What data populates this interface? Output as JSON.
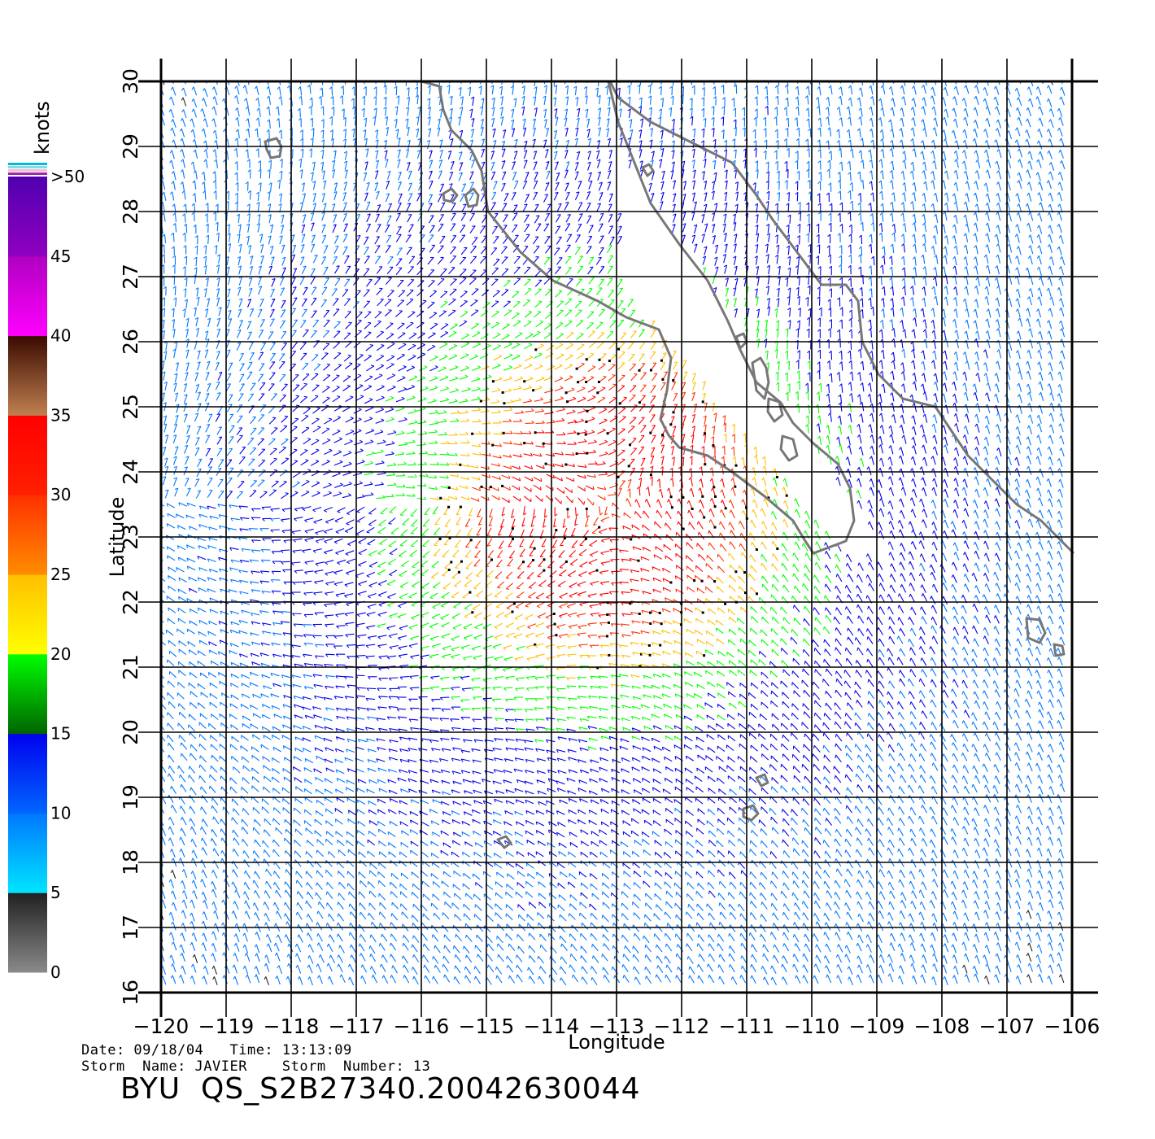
{
  "map": {
    "xlabel": "Longitude",
    "ylabel": "Latitude",
    "lon_ticks": [
      "−120",
      "−119",
      "−118",
      "−117",
      "−116",
      "−115",
      "−114",
      "−113",
      "−112",
      "−111",
      "−110",
      "−109",
      "−108",
      "−107",
      "−106"
    ],
    "lat_ticks": [
      "16",
      "17",
      "18",
      "19",
      "20",
      "21",
      "22",
      "23",
      "24",
      "25",
      "26",
      "27",
      "28",
      "29",
      "30"
    ],
    "lon_range": [
      -120,
      -106
    ],
    "lat_range": [
      16,
      30
    ],
    "storm_center": {
      "lon": -113.1,
      "lat": 23.5
    },
    "wind_barbs": "quiver field of wind vectors colored by speed"
  },
  "colorbar": {
    "unit": "knots",
    "labels": [
      ">50",
      "45",
      "40",
      "35",
      "30",
      "25",
      "20",
      "15",
      "10",
      "5",
      "0"
    ],
    "bands": [
      {
        "from": 0,
        "to": 5,
        "colors": [
          "#8a8a8a",
          "#202020"
        ]
      },
      {
        "from": 5,
        "to": 10,
        "colors": [
          "#00e5ff",
          "#0077ff"
        ]
      },
      {
        "from": 10,
        "to": 15,
        "colors": [
          "#0066ff",
          "#0000ee"
        ]
      },
      {
        "from": 15,
        "to": 20,
        "colors": [
          "#006400",
          "#00ff00"
        ]
      },
      {
        "from": 20,
        "to": 25,
        "colors": [
          "#ffff00",
          "#ffbf00"
        ]
      },
      {
        "from": 25,
        "to": 30,
        "colors": [
          "#ff8c00",
          "#ff3000"
        ]
      },
      {
        "from": 30,
        "to": 35,
        "colors": [
          "#ff2000",
          "#ff0000"
        ]
      },
      {
        "from": 35,
        "to": 40,
        "colors": [
          "#c08050",
          "#3a0a00"
        ]
      },
      {
        "from": 40,
        "to": 45,
        "colors": [
          "#ff00ff",
          "#b000c0"
        ]
      },
      {
        "from": 45,
        "to": 50,
        "colors": [
          "#9000c0",
          "#5000b0"
        ]
      }
    ]
  },
  "footer": {
    "date_time": "Date: 09/18/04   Time: 13:13:09",
    "storm": "Storm  Name: JAVIER    Storm  Number: 13",
    "product": "BYU  QS_S2B27340.20042630044"
  }
}
